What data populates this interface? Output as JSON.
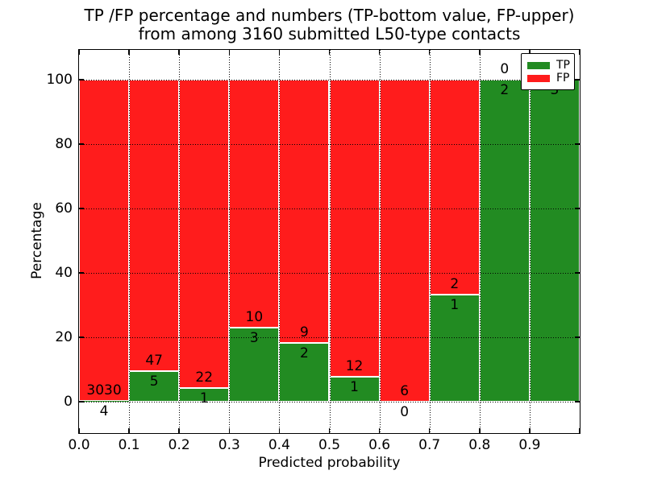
{
  "figure": {
    "title_line1": "TP /FP percentage and numbers (TP-bottom value, FP-upper)",
    "title_line2": "from among 3160 submitted L50-type contacts"
  },
  "chart_data": {
    "type": "bar",
    "stacked": true,
    "units": "percent of bin total",
    "title": "TP /FP percentage and numbers (TP-bottom value, FP-upper)\nfrom among 3160 submitted L50-type contacts",
    "xlabel": "Predicted probability",
    "ylabel": "Percentage",
    "total_contacts": 3160,
    "categories": [
      "0.0-0.1",
      "0.1-0.2",
      "0.2-0.3",
      "0.3-0.4",
      "0.4-0.5",
      "0.5-0.6",
      "0.6-0.7",
      "0.7-0.8",
      "0.8-0.9",
      "0.9-1.0"
    ],
    "x_tick_labels": [
      "0.0",
      "0.1",
      "0.2",
      "0.3",
      "0.4",
      "0.5",
      "0.6",
      "0.7",
      "0.8",
      "0.9"
    ],
    "y_ticks": [
      0,
      20,
      40,
      60,
      80,
      100
    ],
    "xlim": [
      0.0,
      1.0
    ],
    "ylim": [
      -10,
      110
    ],
    "grid": "dotted black, both axes",
    "series": [
      {
        "name": "TP",
        "color": "#228b22",
        "counts": [
          4,
          5,
          1,
          3,
          2,
          1,
          0,
          1,
          2,
          3
        ],
        "percent": [
          0.13,
          9.62,
          4.35,
          23.08,
          18.18,
          7.69,
          0,
          33.33,
          100,
          100
        ]
      },
      {
        "name": "FP",
        "color": "#ff1c1c",
        "counts": [
          3030,
          47,
          22,
          10,
          9,
          12,
          6,
          2,
          0,
          0
        ],
        "percent": [
          99.87,
          90.38,
          95.65,
          76.92,
          81.82,
          92.31,
          100,
          66.67,
          0,
          0
        ]
      }
    ],
    "legend": {
      "position": "upper right",
      "entries": [
        "TP",
        "FP"
      ]
    }
  }
}
